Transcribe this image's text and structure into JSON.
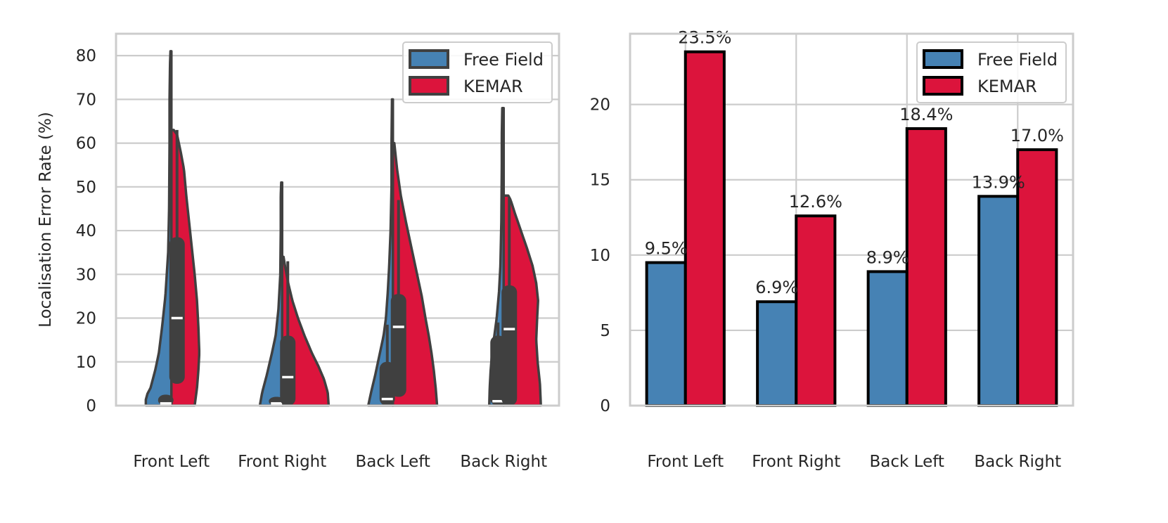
{
  "colors": {
    "free_field": "#4682b4",
    "kemar": "#dc143c",
    "box": "#404040",
    "edge_violin": "#404040",
    "edge_bar": "#000000",
    "grid": "#cccccc",
    "median": "#ffffff"
  },
  "chart_data": [
    {
      "type": "violin",
      "split": true,
      "categories": [
        "Front Left",
        "Front Right",
        "Back Left",
        "Back Right"
      ],
      "ylabel": "Localisation Error Rate (%)",
      "ylim": [
        0,
        85
      ],
      "yticks": [
        0,
        10,
        20,
        30,
        40,
        50,
        60,
        70,
        80
      ],
      "grid": true,
      "legend": {
        "location": "upper right",
        "entries": [
          "Free Field",
          "KEMAR"
        ]
      },
      "series": [
        {
          "name": "Free Field",
          "color_key": "free_field",
          "distributions": [
            {
              "max": 81,
              "q1": 0,
              "median": 0.5,
              "q3": 2.5,
              "whisker_high": 2.5,
              "profile": [
                [
                  0,
                  0.55
                ],
                [
                  2,
                  0.55
                ],
                [
                  4,
                  0.45
                ],
                [
                  8,
                  0.35
                ],
                [
                  12,
                  0.27
                ],
                [
                  18,
                  0.2
                ],
                [
                  25,
                  0.13
                ],
                [
                  35,
                  0.07
                ],
                [
                  45,
                  0.05
                ],
                [
                  60,
                  0.04
                ],
                [
                  70,
                  0.04
                ],
                [
                  78,
                  0.03
                ],
                [
                  81,
                  0.02
                ]
              ]
            },
            {
              "max": 51,
              "q1": 0,
              "median": 0.5,
              "q3": 2,
              "whisker_high": 2,
              "profile": [
                [
                  0,
                  0.48
                ],
                [
                  3,
                  0.43
                ],
                [
                  7,
                  0.33
                ],
                [
                  12,
                  0.22
                ],
                [
                  16,
                  0.14
                ],
                [
                  22,
                  0.08
                ],
                [
                  30,
                  0.04
                ],
                [
                  40,
                  0.03
                ],
                [
                  48,
                  0.03
                ],
                [
                  51,
                  0.02
                ]
              ]
            },
            {
              "max": 70,
              "q1": 0,
              "median": 1.5,
              "q3": 10,
              "whisker_high": 18.5,
              "profile": [
                [
                  0,
                  0.53
                ],
                [
                  3,
                  0.47
                ],
                [
                  7,
                  0.38
                ],
                [
                  11,
                  0.3
                ],
                [
                  16,
                  0.2
                ],
                [
                  20,
                  0.15
                ],
                [
                  26,
                  0.11
                ],
                [
                  32,
                  0.08
                ],
                [
                  40,
                  0.05
                ],
                [
                  50,
                  0.03
                ],
                [
                  60,
                  0.03
                ],
                [
                  70,
                  0.02
                ]
              ]
            },
            {
              "max": 68,
              "q1": 0,
              "median": 1,
              "q3": 16,
              "whisker_high": 19,
              "profile": [
                [
                  0,
                  0.31
                ],
                [
                  4,
                  0.3
                ],
                [
                  8,
                  0.28
                ],
                [
                  12,
                  0.25
                ],
                [
                  16,
                  0.2
                ],
                [
                  20,
                  0.15
                ],
                [
                  26,
                  0.1
                ],
                [
                  32,
                  0.07
                ],
                [
                  42,
                  0.05
                ],
                [
                  55,
                  0.04
                ],
                [
                  62,
                  0.04
                ],
                [
                  68,
                  0.03
                ]
              ]
            }
          ]
        },
        {
          "name": "KEMAR",
          "color_key": "kemar",
          "distributions": [
            {
              "max": 63,
              "q1": 5,
              "median": 20,
              "q3": 38.5,
              "whisker_high": 63,
              "profile": [
                [
                  0,
                  0.5
                ],
                [
                  4,
                  0.55
                ],
                [
                  8,
                  0.58
                ],
                [
                  12,
                  0.6
                ],
                [
                  18,
                  0.58
                ],
                [
                  24,
                  0.55
                ],
                [
                  30,
                  0.5
                ],
                [
                  36,
                  0.44
                ],
                [
                  42,
                  0.38
                ],
                [
                  48,
                  0.32
                ],
                [
                  54,
                  0.27
                ],
                [
                  58,
                  0.2
                ],
                [
                  62,
                  0.12
                ],
                [
                  63,
                  0.05
                ]
              ]
            },
            {
              "max": 34,
              "q1": 0,
              "median": 6.5,
              "q3": 16,
              "whisker_high": 33,
              "profile": [
                [
                  0,
                  1.0
                ],
                [
                  3,
                  0.98
                ],
                [
                  6,
                  0.9
                ],
                [
                  9,
                  0.78
                ],
                [
                  12,
                  0.64
                ],
                [
                  16,
                  0.48
                ],
                [
                  20,
                  0.34
                ],
                [
                  24,
                  0.22
                ],
                [
                  28,
                  0.13
                ],
                [
                  32,
                  0.06
                ],
                [
                  34,
                  0.03
                ]
              ]
            },
            {
              "max": 60,
              "q1": 2,
              "median": 18,
              "q3": 25.5,
              "whisker_high": 47,
              "profile": [
                [
                  0,
                  0.95
                ],
                [
                  4,
                  0.92
                ],
                [
                  8,
                  0.88
                ],
                [
                  12,
                  0.83
                ],
                [
                  16,
                  0.77
                ],
                [
                  20,
                  0.7
                ],
                [
                  25,
                  0.62
                ],
                [
                  30,
                  0.52
                ],
                [
                  36,
                  0.4
                ],
                [
                  42,
                  0.28
                ],
                [
                  48,
                  0.17
                ],
                [
                  54,
                  0.09
                ],
                [
                  58,
                  0.05
                ],
                [
                  60,
                  0.03
                ]
              ]
            },
            {
              "max": 48,
              "q1": 0,
              "median": 17.5,
              "q3": 27.5,
              "whisker_high": 47.5,
              "profile": [
                [
                  0,
                  0.8
                ],
                [
                  5,
                  0.78
                ],
                [
                  10,
                  0.73
                ],
                [
                  15,
                  0.7
                ],
                [
                  20,
                  0.72
                ],
                [
                  24,
                  0.74
                ],
                [
                  28,
                  0.7
                ],
                [
                  32,
                  0.62
                ],
                [
                  36,
                  0.5
                ],
                [
                  40,
                  0.37
                ],
                [
                  44,
                  0.24
                ],
                [
                  47,
                  0.15
                ],
                [
                  48,
                  0.1
                ]
              ]
            }
          ]
        }
      ]
    },
    {
      "type": "bar",
      "categories": [
        "Front Left",
        "Front Right",
        "Back Left",
        "Back Right"
      ],
      "ylim": [
        0,
        24.7
      ],
      "yticks": [
        0,
        5,
        10,
        15,
        20
      ],
      "grid": true,
      "legend": {
        "location": "upper right",
        "entries": [
          "Free Field",
          "KEMAR"
        ]
      },
      "series": [
        {
          "name": "Free Field",
          "color_key": "free_field",
          "values": [
            9.5,
            6.9,
            8.9,
            13.9
          ],
          "labels": [
            "9.5%",
            "6.9%",
            "8.9%",
            "13.9%"
          ]
        },
        {
          "name": "KEMAR",
          "color_key": "kemar",
          "values": [
            23.5,
            12.6,
            18.4,
            17.0
          ],
          "labels": [
            "23.5%",
            "12.6%",
            "18.4%",
            "17.0%"
          ]
        }
      ]
    }
  ]
}
